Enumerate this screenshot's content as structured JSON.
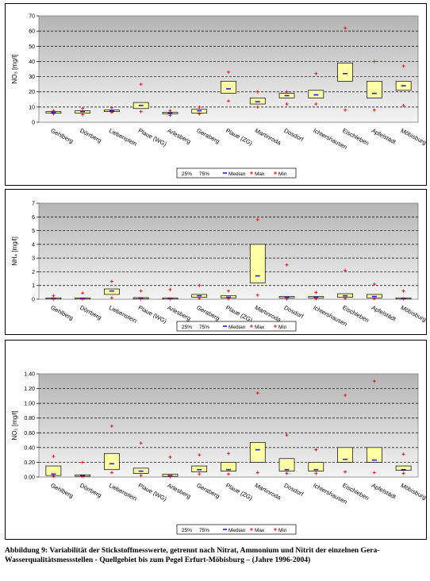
{
  "caption": "Abbildung 9: Variabilität der Stickstoffmesswerte, getrennt nach Nitrat, Ammonium und Nitrit der einzelnen Gera-Wasserqualitätsmessstellen - Quellgebiet bis zum Pegel Erfurt-Möbisburg – (Jahre 1996-2004)",
  "chart_data": [
    {
      "type": "box",
      "title": "",
      "ylabel": "NO₃ [mg/l]",
      "ylim": [
        0,
        70
      ],
      "yticks": [
        "0",
        "10",
        "20",
        "30",
        "40",
        "50",
        "60",
        "70"
      ],
      "categories": [
        "Gehlberg",
        "Dörrberg",
        "Liebenstein",
        "Plaue (WG)",
        "Arlesberg",
        "Geraberg",
        "Plaue (ZG)",
        "Martinroda",
        "Dosdorf",
        "Ichtershausen",
        "Eischleben",
        "Apfelstädt",
        "Möbisburg"
      ],
      "legend": [
        "25%",
        "75%",
        "Median",
        "Max",
        "Min"
      ],
      "grid": true,
      "q25": [
        6,
        6,
        7,
        9,
        5.5,
        6,
        19,
        12,
        16,
        16,
        27,
        16,
        21
      ],
      "q75": [
        7,
        7.5,
        8,
        13,
        6.5,
        8.5,
        27,
        16,
        19,
        21,
        39,
        27,
        27
      ],
      "median": [
        6.5,
        7,
        7.5,
        11,
        6,
        7.5,
        22,
        13.5,
        17.5,
        18,
        32,
        19,
        24
      ],
      "max": [
        7.5,
        9,
        9.5,
        25,
        7.5,
        10,
        33,
        20,
        20,
        32,
        62,
        40,
        37
      ],
      "min": [
        5.5,
        5,
        6.5,
        7,
        4.5,
        5.5,
        14,
        10,
        12,
        12,
        8,
        8,
        11
      ]
    },
    {
      "type": "box",
      "title": "",
      "ylabel": "NH₄ [mg/l]",
      "ylim": [
        0,
        7
      ],
      "yticks": [
        "0",
        "1",
        "2",
        "3",
        "4",
        "5",
        "6",
        "7"
      ],
      "categories": [
        "Gehlberg",
        "Dörrberg",
        "Liebenstein",
        "Plaue (WG)",
        "Arlesberg",
        "Geraberg",
        "Plaue (ZG)",
        "Martinroda",
        "Dosdorf",
        "Ichtershausen",
        "Eischleben",
        "Apfelstädt",
        "Möbisburg"
      ],
      "legend": [
        "25%",
        "75%",
        "Median",
        "Max",
        "Min"
      ],
      "grid": true,
      "q25": [
        0.03,
        0.03,
        0.35,
        0.05,
        0.05,
        0.15,
        0.1,
        1.2,
        0.1,
        0.1,
        0.15,
        0.1,
        0.05
      ],
      "q75": [
        0.1,
        0.1,
        0.75,
        0.12,
        0.1,
        0.35,
        0.25,
        4.0,
        0.2,
        0.2,
        0.4,
        0.35,
        0.1
      ],
      "median": [
        0.06,
        0.06,
        0.6,
        0.08,
        0.07,
        0.25,
        0.15,
        1.7,
        0.15,
        0.15,
        0.25,
        0.2,
        0.07
      ],
      "max": [
        0.25,
        0.45,
        1.3,
        0.6,
        0.7,
        1.0,
        0.6,
        5.8,
        2.5,
        0.5,
        2.1,
        1.1,
        0.6
      ],
      "min": [
        0.01,
        0.01,
        0.1,
        0.02,
        0.02,
        0.05,
        0.03,
        0.3,
        0.03,
        0.03,
        0.05,
        0.03,
        0.02
      ]
    },
    {
      "type": "box",
      "title": "",
      "ylabel": "NO₂ [mg/l]",
      "ylim": [
        0,
        1.4
      ],
      "yticks": [
        "0.00",
        "0.20",
        "0.40",
        "0.60",
        "0.80",
        "1.00",
        "1.20",
        "1.40"
      ],
      "categories": [
        "Gehlberg",
        "Dörrberg",
        "Liebenstein",
        "Plaue (WG)",
        "Arlesberg",
        "Geraberg",
        "Plaue (ZG)",
        "Martinroda",
        "Dosdorf",
        "Ichtershausen",
        "Eischleben",
        "Apfelstädt",
        "Möbisburg"
      ],
      "legend": [
        "25%",
        "75%",
        "Median",
        "Max",
        "Min"
      ],
      "grid": true,
      "q25": [
        0.02,
        0.01,
        0.1,
        0.05,
        0.01,
        0.07,
        0.08,
        0.2,
        0.08,
        0.08,
        0.2,
        0.2,
        0.09
      ],
      "q75": [
        0.15,
        0.03,
        0.32,
        0.12,
        0.04,
        0.15,
        0.2,
        0.47,
        0.25,
        0.2,
        0.4,
        0.4,
        0.15
      ],
      "median": [
        0.04,
        0.02,
        0.18,
        0.08,
        0.02,
        0.1,
        0.1,
        0.37,
        0.1,
        0.1,
        0.24,
        0.23,
        0.1
      ],
      "max": [
        0.28,
        0.2,
        0.69,
        0.46,
        0.27,
        0.3,
        0.32,
        1.14,
        0.57,
        0.37,
        1.11,
        1.3,
        0.31
      ],
      "min": [
        0.01,
        0.005,
        0.06,
        0.02,
        0.005,
        0.04,
        0.04,
        0.06,
        0.05,
        0.05,
        0.07,
        0.06,
        0.05
      ]
    }
  ]
}
